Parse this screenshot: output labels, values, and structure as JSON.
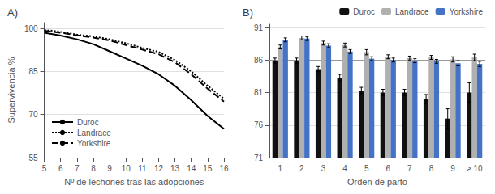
{
  "chart_data": [
    {
      "type": "line",
      "title": "A)",
      "xlabel": "Nº de lechones tras las adopciones",
      "ylabel": "Supervivencia %",
      "x": [
        5,
        6,
        7,
        8,
        9,
        10,
        11,
        12,
        13,
        14,
        15,
        16
      ],
      "xlim": [
        5,
        16
      ],
      "xticks": [
        5,
        6,
        7,
        8,
        9,
        10,
        11,
        12,
        13,
        14,
        15,
        16
      ],
      "ylim": [
        55,
        102
      ],
      "yticks": [
        55,
        70,
        85,
        100
      ],
      "grid": true,
      "legend": "lower left",
      "series": [
        {
          "name": "Duroc",
          "color": "black",
          "line_style": "solid",
          "values": [
            98.5,
            97.5,
            96.2,
            94.5,
            92.0,
            89.5,
            87.0,
            84.0,
            80.0,
            75.0,
            69.5,
            65.0
          ]
        },
        {
          "name": "Landrace",
          "color": "black",
          "line_style": "dotted",
          "values": [
            99.5,
            98.8,
            97.8,
            97.2,
            96.2,
            94.8,
            93.2,
            91.8,
            89.0,
            85.0,
            80.0,
            75.5
          ]
        },
        {
          "name": "Yorkshire",
          "color": "black",
          "line_style": "dashed",
          "values": [
            99.2,
            98.5,
            97.6,
            96.8,
            95.8,
            94.2,
            92.6,
            91.0,
            88.2,
            84.0,
            79.0,
            74.5
          ]
        }
      ]
    },
    {
      "type": "bar",
      "title": "B)",
      "xlabel": "Orden de parto",
      "categories": [
        "1",
        "2",
        "3",
        "4",
        "5",
        "6",
        "7",
        "8",
        "9",
        "> 10"
      ],
      "ylim": [
        71,
        91.5
      ],
      "yticks": [
        71,
        76,
        81,
        86,
        91
      ],
      "grid": true,
      "legend": "upper right",
      "series": [
        {
          "name": "Duroc",
          "color": "#111111",
          "values": [
            85.9,
            85.9,
            84.6,
            83.3,
            81.3,
            81.0,
            81.0,
            80.0,
            77.0,
            81.0
          ],
          "errors": [
            0.4,
            0.4,
            0.4,
            0.5,
            0.5,
            0.5,
            0.5,
            0.7,
            1.5,
            1.5
          ]
        },
        {
          "name": "Landrace",
          "color": "#b0b0b0",
          "values": [
            88.0,
            89.4,
            88.6,
            88.3,
            87.2,
            86.5,
            86.3,
            86.4,
            86.1,
            86.4
          ],
          "errors": [
            0.3,
            0.3,
            0.3,
            0.3,
            0.4,
            0.3,
            0.3,
            0.3,
            0.4,
            0.5
          ]
        },
        {
          "name": "Yorkshire",
          "color": "#4472c4",
          "values": [
            89.1,
            89.3,
            88.2,
            87.3,
            86.2,
            86.0,
            85.9,
            85.8,
            85.5,
            85.4
          ],
          "errors": [
            0.3,
            0.3,
            0.3,
            0.3,
            0.3,
            0.3,
            0.3,
            0.3,
            0.4,
            0.4
          ]
        }
      ],
      "hline": {
        "value": 86,
        "color": "#999999"
      }
    }
  ]
}
